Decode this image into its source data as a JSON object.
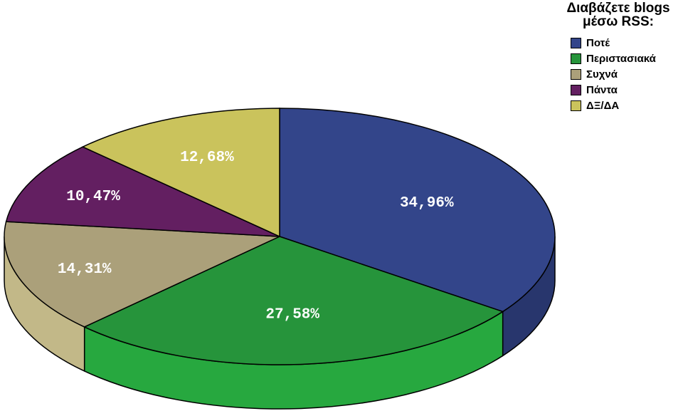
{
  "chart_data": {
    "type": "pie",
    "title": "Διαβάζετε blogs μέσω RSS:",
    "categories": [
      "Ποτέ",
      "Περιστασιακά",
      "Συχνά",
      "Πάντα",
      "ΔΞ/ΔΑ"
    ],
    "values": [
      34.96,
      27.58,
      14.31,
      10.47,
      12.68
    ],
    "data_labels": [
      "34,96%",
      "27,58%",
      "14,31%",
      "10,47%",
      "12,68%"
    ],
    "colors": [
      "#33458a",
      "#26943b",
      "#aba07a",
      "#631f61",
      "#cac35c"
    ],
    "side_colors": [
      "#28366d",
      "#27a83f",
      "#c2b888",
      "#4e184d",
      "#b3ad52"
    ],
    "style": "3d",
    "legend_position": "top-right"
  },
  "legend": {
    "title_line1": "Διαβάζετε blogs",
    "title_line2": "μέσω RSS:"
  }
}
